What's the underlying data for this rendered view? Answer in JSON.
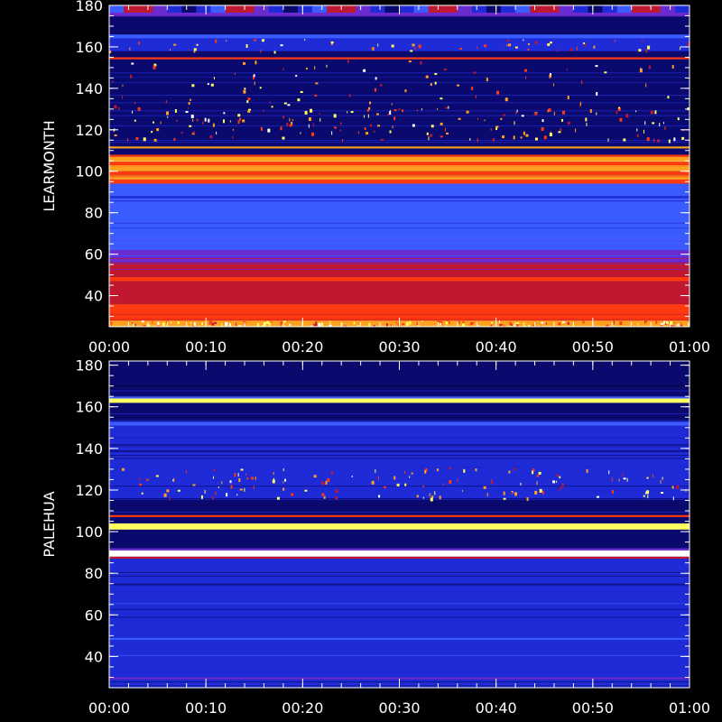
{
  "chart_data": [
    {
      "type": "heatmap",
      "ylabel": "LEARMONTH",
      "xlabel": "",
      "x_ticks": [
        "00:00",
        "00:10",
        "00:20",
        "00:30",
        "00:40",
        "00:50",
        "01:00"
      ],
      "y_ticks": [
        40,
        60,
        80,
        100,
        120,
        140,
        160,
        180
      ],
      "xlim": [
        "00:00",
        "01:00"
      ],
      "ylim": [
        25,
        180
      ],
      "colormap": [
        "#000018",
        "#0a0a6e",
        "#1f2bd6",
        "#3b5cff",
        "#6a2bd0",
        "#c01830",
        "#ff3a10",
        "#ffa020",
        "#ffff60",
        "#ffffff"
      ],
      "bands": [
        {
          "y": [
            25,
            28
          ],
          "level": 0.82,
          "speckle": 0.3
        },
        {
          "y": [
            28,
            36
          ],
          "level": 0.62
        },
        {
          "y": [
            36,
            47
          ],
          "level": 0.58
        },
        {
          "y": [
            47,
            49
          ],
          "level": 0.66
        },
        {
          "y": [
            49,
            56
          ],
          "level": 0.5
        },
        {
          "y": [
            56,
            62
          ],
          "level": 0.45
        },
        {
          "y": [
            62,
            70
          ],
          "level": 0.36
        },
        {
          "y": [
            70,
            87
          ],
          "level": 0.28
        },
        {
          "y": [
            87,
            88
          ],
          "level": 0.2
        },
        {
          "y": [
            88,
            94
          ],
          "level": 0.3
        },
        {
          "y": [
            94,
            96
          ],
          "level": 0.7
        },
        {
          "y": [
            96,
            98
          ],
          "level": 0.78
        },
        {
          "y": [
            98,
            100
          ],
          "level": 0.62
        },
        {
          "y": [
            100,
            103
          ],
          "level": 0.74
        },
        {
          "y": [
            103,
            105
          ],
          "level": 0.66
        },
        {
          "y": [
            105,
            107
          ],
          "level": 0.8
        },
        {
          "y": [
            107,
            108
          ],
          "level": 0.62
        },
        {
          "y": [
            108,
            111
          ],
          "level": 0.12
        },
        {
          "y": [
            111,
            112
          ],
          "level": 0.82
        },
        {
          "y": [
            112,
            115
          ],
          "level": 0.14
        },
        {
          "y": [
            115,
            131
          ],
          "level": 0.16,
          "speckle": 0.06
        },
        {
          "y": [
            131,
            154
          ],
          "level": 0.14,
          "speckle": 0.02
        },
        {
          "y": [
            154,
            155
          ],
          "level": 0.68
        },
        {
          "y": [
            155,
            158
          ],
          "level": 0.13
        },
        {
          "y": [
            158,
            164
          ],
          "level": 0.2,
          "speckle": 0.05
        },
        {
          "y": [
            164,
            166
          ],
          "level": 0.32
        },
        {
          "y": [
            166,
            175
          ],
          "level": 0.1
        },
        {
          "y": [
            175,
            180
          ],
          "level": 0.48
        }
      ]
    },
    {
      "type": "heatmap",
      "ylabel": "PALEHUA",
      "xlabel": "",
      "x_ticks": [
        "00:00",
        "00:10",
        "00:20",
        "00:30",
        "00:40",
        "00:50",
        "01:00"
      ],
      "y_ticks": [
        40,
        60,
        80,
        100,
        120,
        140,
        160,
        180
      ],
      "xlim": [
        "00:00",
        "01:00"
      ],
      "ylim": [
        25,
        180
      ],
      "colormap": [
        "#000018",
        "#0a0a6e",
        "#1f2bd6",
        "#3b5cff",
        "#6a2bd0",
        "#c01830",
        "#ff3a10",
        "#ffa020",
        "#ffff60",
        "#ffffff"
      ],
      "bands": [
        {
          "y": [
            25,
            29
          ],
          "level": 0.2
        },
        {
          "y": [
            29,
            30
          ],
          "level": 0.4
        },
        {
          "y": [
            30,
            48
          ],
          "level": 0.24
        },
        {
          "y": [
            48,
            49
          ],
          "level": 0.34
        },
        {
          "y": [
            49,
            74
          ],
          "level": 0.22
        },
        {
          "y": [
            74,
            87
          ],
          "level": 0.18
        },
        {
          "y": [
            87,
            88
          ],
          "level": 0.5
        },
        {
          "y": [
            88,
            91
          ],
          "level": 0.98
        },
        {
          "y": [
            91,
            92
          ],
          "level": 0.4
        },
        {
          "y": [
            92,
            101
          ],
          "level": 0.1
        },
        {
          "y": [
            101,
            104
          ],
          "level": 0.86
        },
        {
          "y": [
            104,
            107
          ],
          "level": 0.12
        },
        {
          "y": [
            107,
            108
          ],
          "level": 0.72
        },
        {
          "y": [
            108,
            116
          ],
          "level": 0.16
        },
        {
          "y": [
            116,
            131
          ],
          "level": 0.2,
          "speckle": 0.05
        },
        {
          "y": [
            131,
            151
          ],
          "level": 0.17
        },
        {
          "y": [
            151,
            153
          ],
          "level": 0.3
        },
        {
          "y": [
            153,
            162
          ],
          "level": 0.14
        },
        {
          "y": [
            162,
            164
          ],
          "level": 0.9
        },
        {
          "y": [
            164,
            165
          ],
          "level": 0.35
        },
        {
          "y": [
            165,
            180
          ],
          "level": 0.12
        }
      ]
    }
  ]
}
